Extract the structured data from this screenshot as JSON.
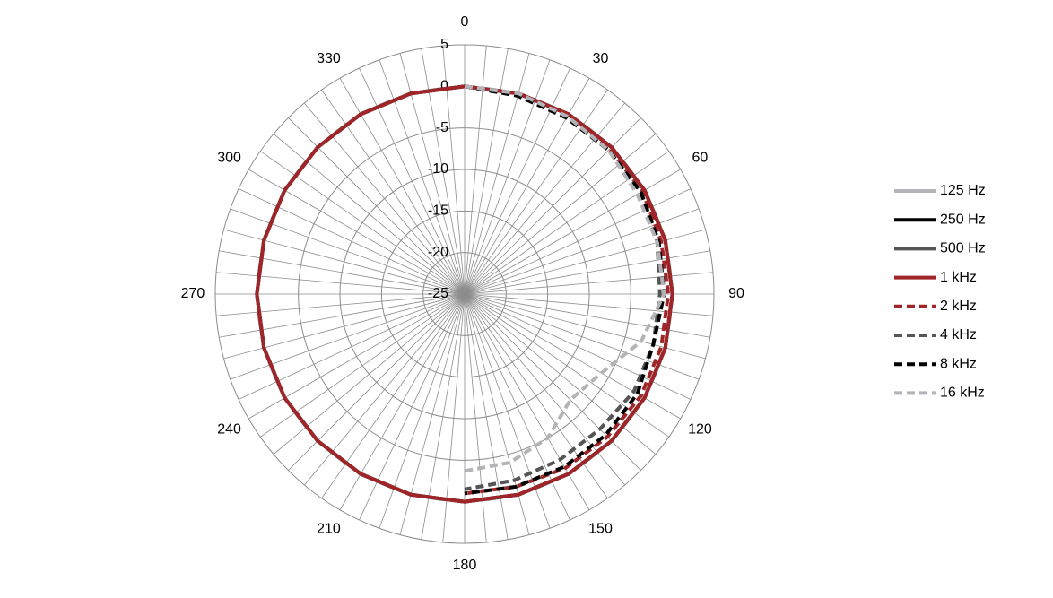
{
  "chart_data": {
    "type": "polar-line",
    "theta": [
      0,
      15,
      30,
      45,
      60,
      75,
      90,
      105,
      120,
      135,
      150,
      165,
      180,
      195,
      210,
      225,
      240,
      255,
      270,
      285,
      300,
      315,
      330,
      345,
      360
    ],
    "rlim": [
      -25,
      5
    ],
    "rticks": [
      -25,
      -20,
      -15,
      -10,
      -5,
      0,
      5
    ],
    "thetaticks": [
      0,
      30,
      60,
      90,
      120,
      150,
      180,
      210,
      240,
      270,
      300,
      330
    ],
    "thetagrid": [
      0,
      5,
      10,
      15,
      20,
      25,
      30,
      35,
      40,
      45,
      50,
      55,
      60,
      65,
      70,
      75,
      80,
      85,
      90,
      95,
      100,
      105,
      110,
      115,
      120,
      125,
      130,
      135,
      140,
      145,
      150,
      155,
      160,
      165,
      170,
      175,
      180,
      185,
      190,
      195,
      200,
      205,
      210,
      215,
      220,
      225,
      230,
      235,
      240,
      245,
      250,
      255,
      260,
      265,
      270,
      275,
      280,
      285,
      290,
      295,
      300,
      305,
      310,
      315,
      320,
      325,
      330,
      335,
      340,
      345,
      350,
      355
    ],
    "series": [
      {
        "name": "125 Hz",
        "color": "#b4b4b8",
        "linestyle": "solid",
        "values": [
          0,
          0,
          0,
          0,
          0,
          0,
          0,
          0,
          0,
          0,
          0,
          0,
          0,
          0,
          0,
          0,
          0,
          0,
          0,
          0,
          0,
          0,
          0,
          0,
          0
        ]
      },
      {
        "name": "250 Hz",
        "color": "#000000",
        "linestyle": "solid",
        "values": [
          0,
          0,
          0,
          0,
          0,
          0,
          0,
          0,
          0,
          0,
          0,
          0,
          0,
          0,
          0,
          0,
          0,
          0,
          0,
          0,
          0,
          0,
          0,
          0,
          0
        ]
      },
      {
        "name": "500 Hz",
        "color": "#555555",
        "linestyle": "solid",
        "values": [
          0,
          0,
          0,
          0,
          0,
          0,
          0,
          0,
          0,
          0,
          0,
          0,
          0,
          0,
          0,
          0,
          0,
          0,
          0,
          0,
          0,
          0,
          0,
          0,
          0
        ]
      },
      {
        "name": "1 kHz",
        "color": "#a02528",
        "linestyle": "solid",
        "values": [
          0,
          0,
          0,
          0,
          0,
          0,
          0,
          0,
          0,
          0,
          0,
          0,
          0,
          0,
          0,
          0,
          0,
          0,
          0,
          0,
          0,
          0,
          0,
          0,
          0
        ]
      },
      {
        "name": "2 kHz",
        "color": "#a02528",
        "linestyle": "dashed",
        "values": [
          0,
          0,
          0,
          -0.3,
          -0.3,
          -0.5,
          -0.5,
          -0.5,
          -0.5,
          -0.7,
          -0.8,
          -1,
          -1,
          null,
          null,
          null,
          null,
          null,
          null,
          null,
          null,
          null,
          null,
          null,
          null
        ]
      },
      {
        "name": "4 kHz",
        "color": "#555555",
        "linestyle": "dashed",
        "values": [
          0,
          -0.2,
          -0.3,
          -0.5,
          -0.5,
          -1,
          -1.5,
          -1.5,
          -1.5,
          -2,
          -2,
          -1.8,
          -1.5,
          null,
          null,
          null,
          null,
          null,
          null,
          null,
          null,
          null,
          null,
          null,
          null
        ]
      },
      {
        "name": "8 kHz",
        "color": "#000000",
        "linestyle": "dashed",
        "values": [
          0,
          -0.3,
          -0.5,
          -0.5,
          -0.5,
          -0.8,
          -1,
          -1.5,
          -1,
          -1,
          -1,
          -1,
          -1,
          null,
          null,
          null,
          null,
          null,
          null,
          null,
          null,
          null,
          null,
          null,
          null
        ]
      },
      {
        "name": "16 kHz",
        "color": "#b4b4b8",
        "linestyle": "dashed",
        "values": [
          0,
          0,
          -0.3,
          -0.5,
          -1,
          -1,
          -1,
          -3,
          -6,
          -7,
          -5,
          -4,
          -3.7,
          null,
          null,
          null,
          null,
          null,
          null,
          null,
          null,
          null,
          null,
          null,
          null
        ]
      }
    ]
  }
}
